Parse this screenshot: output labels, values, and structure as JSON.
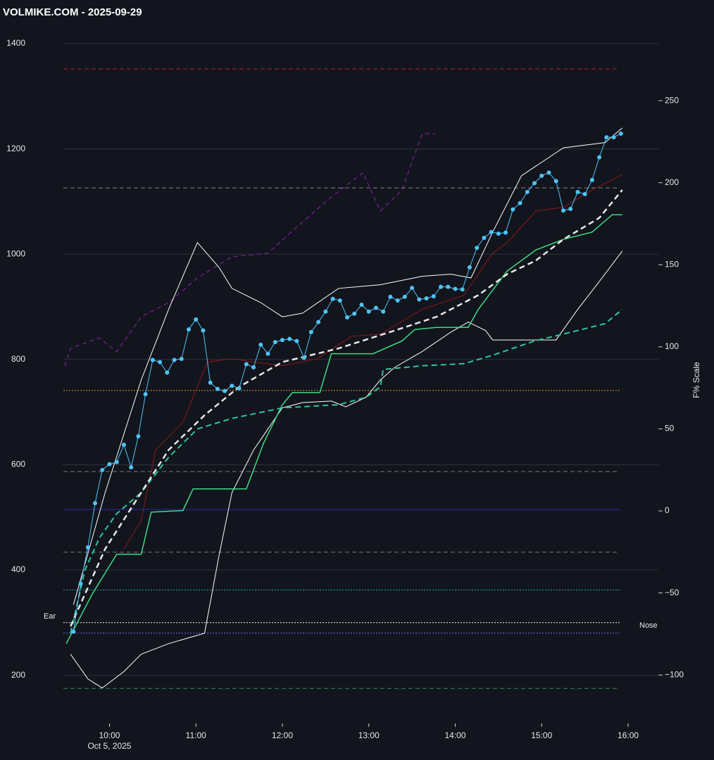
{
  "chart_data": {
    "type": "line",
    "title": "VOLMIKE.COM  - 2025-09-29",
    "y2_label": "F% Scale",
    "x_sublabel": "Oct 5, 2025",
    "xlim": [
      568,
      981
    ],
    "xticks": [
      {
        "value": 600,
        "label": "10:00"
      },
      {
        "value": 660,
        "label": "11:00"
      },
      {
        "value": 720,
        "label": "12:00"
      },
      {
        "value": 780,
        "label": "13:00"
      },
      {
        "value": 840,
        "label": "14:00"
      },
      {
        "value": 900,
        "label": "15:00"
      },
      {
        "value": 960,
        "label": "16:00"
      }
    ],
    "ylim": [
      150,
      1430
    ],
    "yticks": [
      200,
      400,
      600,
      800,
      1000,
      1200,
      1400
    ],
    "y2lim": [
      -116.2,
      294.4
    ],
    "y2ticks": [
      {
        "value": -100,
        "label": "−100"
      },
      {
        "value": -50,
        "label": "−50"
      },
      0,
      50,
      100,
      150,
      200,
      250
    ],
    "grid": true,
    "hlines": [
      {
        "value": 1352,
        "color": "#b22222",
        "dash": "6,4"
      },
      {
        "value": 1126,
        "color": "#888888",
        "dash": "6,4"
      },
      {
        "value": 741,
        "color": "#d4a017",
        "dash": "2,2"
      },
      {
        "value": 587,
        "color": "#777777",
        "dash": "6,4"
      },
      {
        "value": 515,
        "color": "#2a2aa8",
        "dash": ""
      },
      {
        "value": 434,
        "color": "#777777",
        "dash": "6,4"
      },
      {
        "value": 362,
        "color": "#20b2aa",
        "dash": "2,2"
      },
      {
        "value": 300,
        "color": "#ffffff",
        "dash": "2,2"
      },
      {
        "value": 280,
        "color": "#7b68ee",
        "dash": "2,2"
      },
      {
        "value": 175,
        "color": "#2e8b57",
        "dash": "6,4"
      }
    ],
    "series": [
      {
        "color": "#9b1fb5",
        "dash": "6,5",
        "width": 1,
        "markers": false,
        "x": [
          569,
          573,
          593,
          605,
          622,
          641,
          661,
          685,
          710,
          729,
          754,
          776,
          788,
          803,
          817,
          826
        ],
        "values": [
          788,
          821,
          841,
          815,
          881,
          908,
          955,
          995,
          1002,
          1049,
          1109,
          1155,
          1082,
          1122,
          1229,
          1229
        ]
      },
      {
        "color": "#ffffff",
        "dash": "",
        "width": 1,
        "markers": false,
        "x": [
          573,
          585,
          595,
          610,
          622,
          641,
          666,
          676,
          685,
          700,
          720,
          734,
          754,
          764,
          778,
          788,
          798,
          817,
          837,
          849,
          861,
          866,
          910,
          925,
          940,
          956
        ],
        "values": [
          240,
          193,
          176,
          207,
          240,
          260,
          280,
          427,
          547,
          628,
          708,
          718,
          721,
          710,
          728,
          761,
          785,
          815,
          852,
          871,
          855,
          837,
          837,
          895,
          948,
          1006
        ]
      },
      {
        "color": "#ffffff",
        "dash": "",
        "width": 1,
        "markers": false,
        "x": [
          575,
          597,
          622,
          641,
          661,
          676,
          685,
          705,
          720,
          734,
          759,
          788,
          817,
          837,
          851,
          866,
          886,
          915,
          944,
          956
        ],
        "values": [
          334,
          547,
          761,
          895,
          1022,
          975,
          935,
          908,
          881,
          888,
          935,
          942,
          958,
          962,
          955,
          1042,
          1149,
          1202,
          1212,
          1240
        ]
      },
      {
        "color": "#8b1a1a",
        "dash": "",
        "width": 1,
        "markers": false,
        "x": [
          610,
          622,
          632,
          651,
          668,
          685,
          720,
          744,
          768,
          788,
          817,
          846,
          866,
          876,
          896,
          915,
          935,
          956
        ],
        "values": [
          440,
          494,
          628,
          681,
          795,
          801,
          788,
          801,
          844,
          848,
          895,
          922,
          1002,
          1022,
          1082,
          1089,
          1122,
          1151
        ]
      },
      {
        "color": "#2ec4a0",
        "dash": "8,5",
        "width": 2,
        "markers": false,
        "x": [
          573,
          583,
          593,
          605,
          622,
          641,
          661,
          685,
          720,
          759,
          778,
          788,
          790,
          817,
          846,
          866,
          895,
          925,
          944,
          956
        ],
        "values": [
          280,
          400,
          461,
          507,
          547,
          614,
          668,
          688,
          708,
          714,
          728,
          748,
          781,
          788,
          792,
          808,
          835,
          855,
          868,
          895
        ]
      },
      {
        "color": "#3ddc84",
        "dash": "",
        "width": 1.5,
        "markers": false,
        "x": [
          570,
          588,
          605,
          622,
          629,
          651,
          658,
          695,
          707,
          720,
          727,
          746,
          754,
          783,
          803,
          812,
          827,
          849,
          856,
          876,
          896,
          915,
          935,
          949,
          956
        ],
        "values": [
          260,
          354,
          430,
          430,
          510,
          513,
          554,
          554,
          641,
          714,
          737,
          737,
          811,
          811,
          835,
          857,
          861,
          861,
          895,
          968,
          1008,
          1028,
          1042,
          1075,
          1075
        ]
      },
      {
        "color": "#e8e8e8",
        "dash": "8,5",
        "width": 2.5,
        "markers": false,
        "x": [
          573,
          597,
          622,
          641,
          666,
          690,
          720,
          759,
          798,
          827,
          856,
          876,
          896,
          915,
          940,
          956
        ],
        "values": [
          293,
          440,
          547,
          628,
          694,
          748,
          795,
          821,
          855,
          881,
          922,
          962,
          988,
          1028,
          1069,
          1122
        ]
      },
      {
        "color": "#4fc3f7",
        "dash": "",
        "width": 1,
        "markers": true,
        "x": [
          575,
          580,
          585,
          590,
          595,
          600,
          605,
          610,
          615,
          620,
          625,
          630,
          635,
          640,
          645,
          650,
          655,
          660,
          665,
          670,
          675,
          680,
          685,
          690,
          695,
          700,
          705,
          710,
          715,
          720,
          725,
          730,
          735,
          740,
          745,
          750,
          755,
          760,
          765,
          770,
          775,
          780,
          785,
          790,
          795,
          800,
          805,
          810,
          815,
          820,
          825,
          830,
          835,
          840,
          845,
          850,
          855,
          860,
          865,
          870,
          875,
          880,
          885,
          890,
          895,
          900,
          905,
          910,
          915,
          920,
          925,
          930,
          935,
          940,
          945,
          950,
          955
        ],
        "values": [
          283,
          374,
          443,
          527,
          590,
          601,
          605,
          638,
          595,
          654,
          734,
          799,
          795,
          775,
          799,
          801,
          857,
          876,
          855,
          756,
          744,
          740,
          750,
          745,
          791,
          785,
          828,
          811,
          833,
          837,
          839,
          835,
          803,
          852,
          871,
          891,
          915,
          912,
          880,
          887,
          904,
          891,
          898,
          891,
          919,
          912,
          919,
          936,
          914,
          916,
          920,
          938,
          938,
          934,
          933,
          975,
          1012,
          1031,
          1042,
          1039,
          1041,
          1085,
          1097,
          1118,
          1135,
          1149,
          1155,
          1139,
          1083,
          1086,
          1118,
          1114,
          1141,
          1184,
          1222,
          1222,
          1229
        ]
      }
    ],
    "annotations": [
      "Ear",
      "Nose"
    ]
  }
}
